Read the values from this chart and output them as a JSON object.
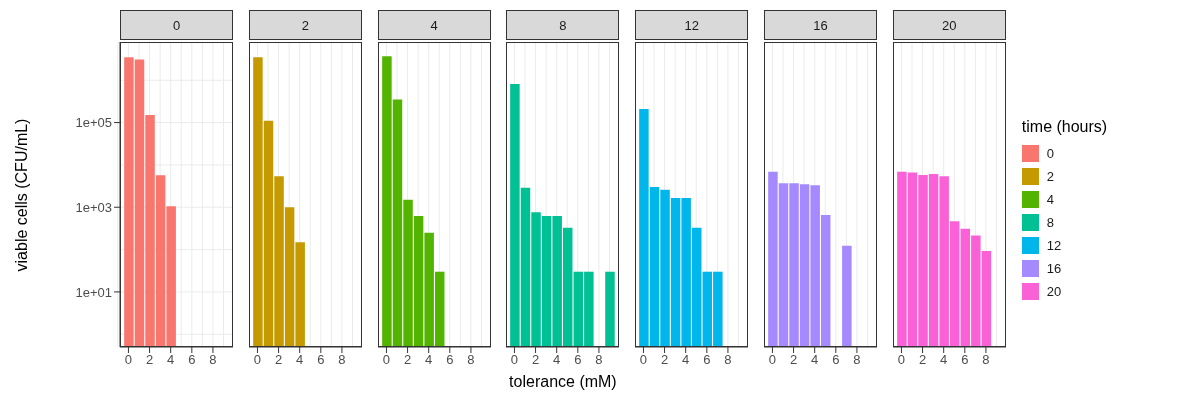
{
  "chart_data": [
    {
      "type": "bar",
      "title": "0",
      "ylabel": "viable cells (CFU/mL)",
      "x": [
        0,
        1,
        2,
        3,
        4
      ],
      "series": [
        {
          "name": "0",
          "color": "#f8766d",
          "values": [
            3500000,
            3100000,
            150000,
            5700,
            1050
          ]
        }
      ],
      "xlim": [
        -0.8,
        9.9
      ],
      "xticks": [
        0,
        2,
        4,
        6,
        8
      ],
      "ylim": [
        0.5,
        8000000
      ],
      "yticks": [
        {
          "value": 10,
          "label": "1e+01"
        },
        {
          "value": 1000,
          "label": "1e+03"
        },
        {
          "value": 100000,
          "label": "1e+05"
        }
      ],
      "log": true,
      "grid": true
    },
    {
      "type": "bar",
      "title": "2",
      "x": [
        0,
        1,
        2,
        3,
        4
      ],
      "series": [
        {
          "name": "2",
          "color": "#c49a00",
          "values": [
            3500000,
            110000,
            5400,
            1000,
            150
          ]
        }
      ],
      "xlim": [
        -0.8,
        9.9
      ],
      "xticks": [
        0,
        2,
        4,
        6,
        8
      ],
      "ylim": [
        0.5,
        8000000
      ],
      "yticks": [
        {
          "value": 10,
          "label": null
        },
        {
          "value": 1000,
          "label": null
        },
        {
          "value": 100000,
          "label": null
        }
      ],
      "log": true,
      "grid": true,
      "tick_labels": "x"
    },
    {
      "type": "bar",
      "title": "4",
      "x": [
        0,
        1,
        2,
        3,
        4,
        5
      ],
      "series": [
        {
          "name": "4",
          "color": "#53b400",
          "values": [
            3700000,
            350000,
            1500,
            620,
            250,
            30
          ]
        }
      ],
      "xlim": [
        -0.8,
        9.9
      ],
      "xticks": [
        0,
        2,
        4,
        6,
        8
      ],
      "ylim": [
        0.5,
        8000000
      ],
      "yticks": [
        {
          "value": 10,
          "label": null
        },
        {
          "value": 1000,
          "label": null
        },
        {
          "value": 100000,
          "label": null
        }
      ],
      "log": true,
      "grid": true,
      "tick_labels": "x"
    },
    {
      "type": "bar",
      "title": "8",
      "xlabel": "tolerance (mM)",
      "x": [
        0,
        1,
        2,
        3,
        4,
        5,
        6,
        7,
        9
      ],
      "series": [
        {
          "name": "8",
          "color": "#00c094",
          "values": [
            810000,
            2900,
            760,
            620,
            620,
            330,
            30,
            30,
            30
          ]
        }
      ],
      "xlim": [
        -0.8,
        9.9
      ],
      "xticks": [
        0,
        2,
        4,
        6,
        8
      ],
      "ylim": [
        0.5,
        8000000
      ],
      "yticks": [
        {
          "value": 10,
          "label": null
        },
        {
          "value": 1000,
          "label": null
        },
        {
          "value": 100000,
          "label": null
        }
      ],
      "log": true,
      "grid": true,
      "tick_labels": "x"
    },
    {
      "type": "bar",
      "title": "12",
      "x": [
        0,
        1,
        2,
        3,
        4,
        5,
        6,
        7
      ],
      "series": [
        {
          "name": "12",
          "color": "#00b6eb",
          "values": [
            210000,
            3000,
            2600,
            1650,
            1650,
            330,
            30,
            30
          ]
        }
      ],
      "xlim": [
        -0.8,
        9.9
      ],
      "xticks": [
        0,
        2,
        4,
        6,
        8
      ],
      "ylim": [
        0.5,
        8000000
      ],
      "yticks": [
        {
          "value": 10,
          "label": null
        },
        {
          "value": 1000,
          "label": null
        },
        {
          "value": 100000,
          "label": null
        }
      ],
      "log": true,
      "grid": true,
      "tick_labels": "x"
    },
    {
      "type": "bar",
      "title": "16",
      "x": [
        0,
        1,
        2,
        3,
        4,
        5,
        7
      ],
      "series": [
        {
          "name": "16",
          "color": "#a58aff",
          "values": [
            6900,
            3700,
            3700,
            3500,
            3300,
            660,
            124
          ]
        }
      ],
      "xlim": [
        -0.8,
        9.9
      ],
      "xticks": [
        0,
        2,
        4,
        6,
        8
      ],
      "ylim": [
        0.5,
        8000000
      ],
      "yticks": [
        {
          "value": 10,
          "label": null
        },
        {
          "value": 1000,
          "label": null
        },
        {
          "value": 100000,
          "label": null
        }
      ],
      "log": true,
      "grid": true,
      "tick_labels": "x"
    },
    {
      "type": "bar",
      "title": "20",
      "legend": "right",
      "legend_title": "time (hours)",
      "x": [
        0,
        1,
        2,
        3,
        4,
        5,
        6,
        7,
        8
      ],
      "series": [
        {
          "name": "20",
          "color": "#fb61d7",
          "values": [
            6900,
            6600,
            5800,
            6100,
            5400,
            470,
            310,
            215,
            93
          ]
        }
      ],
      "xlim": [
        -0.8,
        9.9
      ],
      "xticks": [
        0,
        2,
        4,
        6,
        8
      ],
      "ylim": [
        0.5,
        8000000
      ],
      "yticks": [
        {
          "value": 10,
          "label": null
        },
        {
          "value": 1000,
          "label": null
        },
        {
          "value": 100000,
          "label": null
        }
      ],
      "log": true,
      "grid": true,
      "tick_labels": "x"
    }
  ]
}
